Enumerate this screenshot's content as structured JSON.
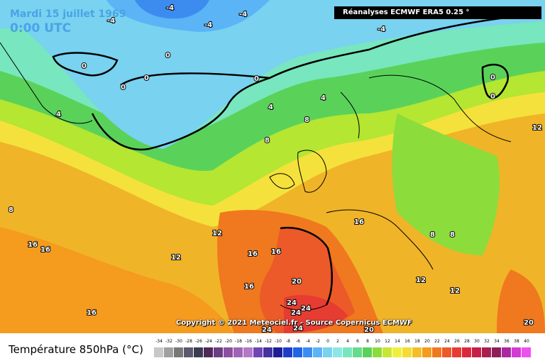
{
  "header": {
    "date": "Mardi 15 juillet 1969",
    "time": "0:00 UTC",
    "source_badge": "Réanalyses ECMWF ERA5 0.25 °"
  },
  "copyright": "Copyright © 2021 Meteociel.fr - Source Copernicus ECMWF",
  "legend": {
    "title": "Température 850hPa (°C)",
    "ticks": [
      "-34",
      "-32",
      "-30",
      "-28",
      "-26",
      "-24",
      "-22",
      "-20",
      "-18",
      "-16",
      "-14",
      "-12",
      "-10",
      "-8",
      "-6",
      "-4",
      "-2",
      "0",
      "2",
      "4",
      "6",
      "8",
      "10",
      "12",
      "14",
      "16",
      "18",
      "20",
      "22",
      "24",
      "26",
      "28",
      "30",
      "32",
      "34",
      "36",
      "38",
      "40"
    ],
    "colors": [
      "#c8c8c8",
      "#a0a0a0",
      "#787878",
      "#5a5a6e",
      "#3c3c50",
      "#50285a",
      "#6e3c82",
      "#8c50a0",
      "#a064b4",
      "#b478c8",
      "#6e46b4",
      "#4632a0",
      "#1e1e96",
      "#1e3cc8",
      "#1e64e6",
      "#3c8cf0",
      "#5ab4f5",
      "#78d2f0",
      "#8ce6e6",
      "#78e6be",
      "#64dc8c",
      "#5ad25a",
      "#8cdc3c",
      "#c8e632",
      "#f0f03c",
      "#f5dc32",
      "#f5be28",
      "#f59b1e",
      "#f0781e",
      "#eb5a28",
      "#e63c32",
      "#dc283c",
      "#c81e46",
      "#aa1e50",
      "#8c1e5a",
      "#aa28a0",
      "#d23cd2",
      "#f050f0"
    ]
  },
  "isotherm_labels": [
    "-4",
    "-4",
    "-4",
    "-4",
    "-4",
    "0",
    "0",
    "0",
    "0",
    "0",
    "0",
    "0",
    "4",
    "4",
    "4",
    "8",
    "8",
    "8",
    "8",
    "8",
    "12",
    "12",
    "12",
    "12",
    "12",
    "16",
    "16",
    "16",
    "16",
    "16",
    "16",
    "16",
    "20",
    "20",
    "20",
    "24",
    "24",
    "24",
    "24",
    "24"
  ]
}
